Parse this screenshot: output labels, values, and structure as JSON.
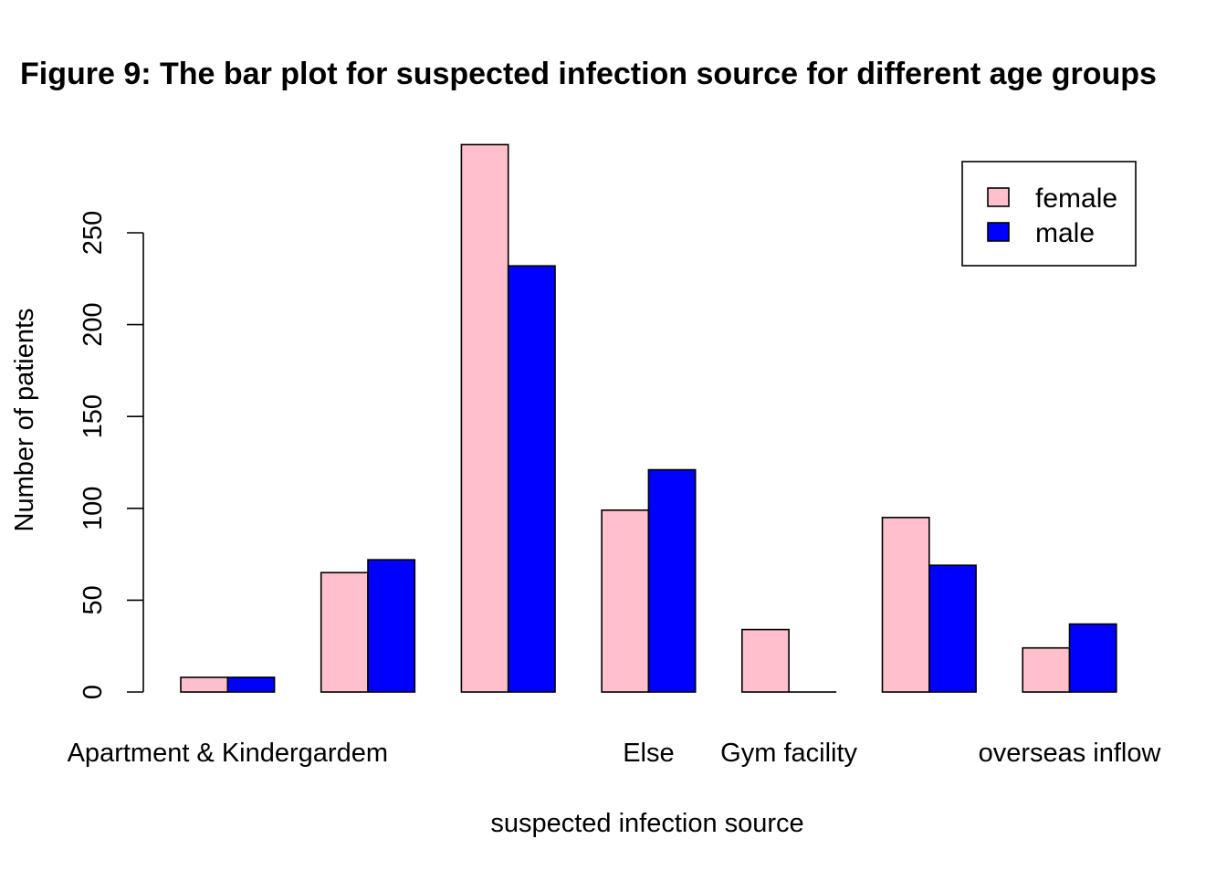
{
  "chart_data": {
    "type": "bar",
    "title": "Figure 9: The bar plot for suspected infection source for different age groups",
    "xlabel": "suspected infection source",
    "ylabel": "Number of patients",
    "categories": [
      "Apartment & Kindergardem",
      "",
      "",
      "Else",
      "Gym facility",
      "",
      "overseas inflow"
    ],
    "series": [
      {
        "name": "female",
        "color": "#FFC0CB",
        "values": [
          8,
          65,
          298,
          99,
          34,
          95,
          24
        ]
      },
      {
        "name": "male",
        "color": "#0000FF",
        "values": [
          8,
          72,
          232,
          121,
          0,
          69,
          37
        ]
      }
    ],
    "ylim": [
      0,
      300
    ],
    "yticks": [
      0,
      50,
      100,
      150,
      200,
      250
    ],
    "grid": false,
    "legend": {
      "position": "top-right",
      "entries": [
        "female",
        "male"
      ]
    }
  }
}
